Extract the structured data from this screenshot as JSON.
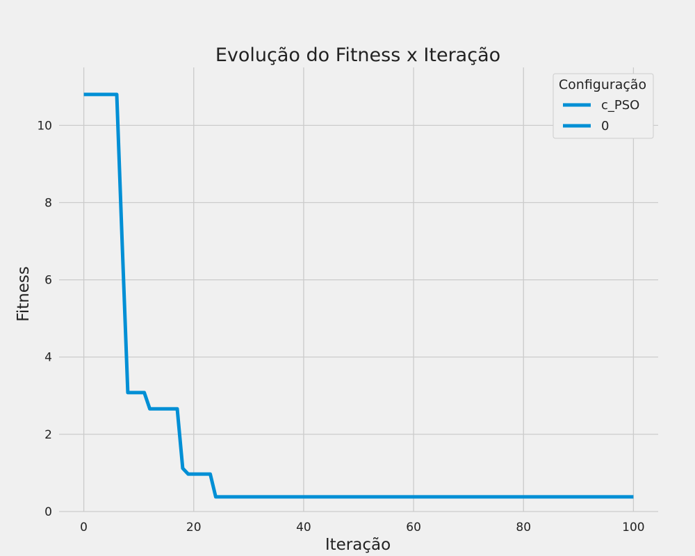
{
  "chart_data": {
    "type": "line",
    "title": "Evolução do Fitness x Iteração",
    "xlabel": "Iteração",
    "ylabel": "Fitness",
    "xlim": [
      -4.5,
      104.5
    ],
    "ylim": [
      0,
      11.5
    ],
    "xticks": [
      0,
      20,
      40,
      60,
      80,
      100
    ],
    "yticks": [
      0,
      2,
      4,
      6,
      8,
      10
    ],
    "grid": true,
    "legend": {
      "title": "Configuração",
      "placement": "top-right",
      "entries": [
        {
          "label": "c_PSO",
          "color": "#008fd5"
        },
        {
          "label": "0",
          "color": "#008fd5"
        }
      ]
    },
    "series": [
      {
        "color": "#008fd5",
        "x": [
          0,
          6,
          7,
          8,
          11,
          12,
          17,
          18,
          19,
          23,
          24,
          100
        ],
        "y": [
          10.8,
          10.8,
          6.9,
          3.08,
          3.08,
          2.66,
          2.66,
          1.12,
          0.97,
          0.97,
          0.38,
          0.38
        ]
      }
    ]
  },
  "colors": {
    "background": "#f0f0f0",
    "grid": "#cbcbcb",
    "line": "#008fd5"
  }
}
